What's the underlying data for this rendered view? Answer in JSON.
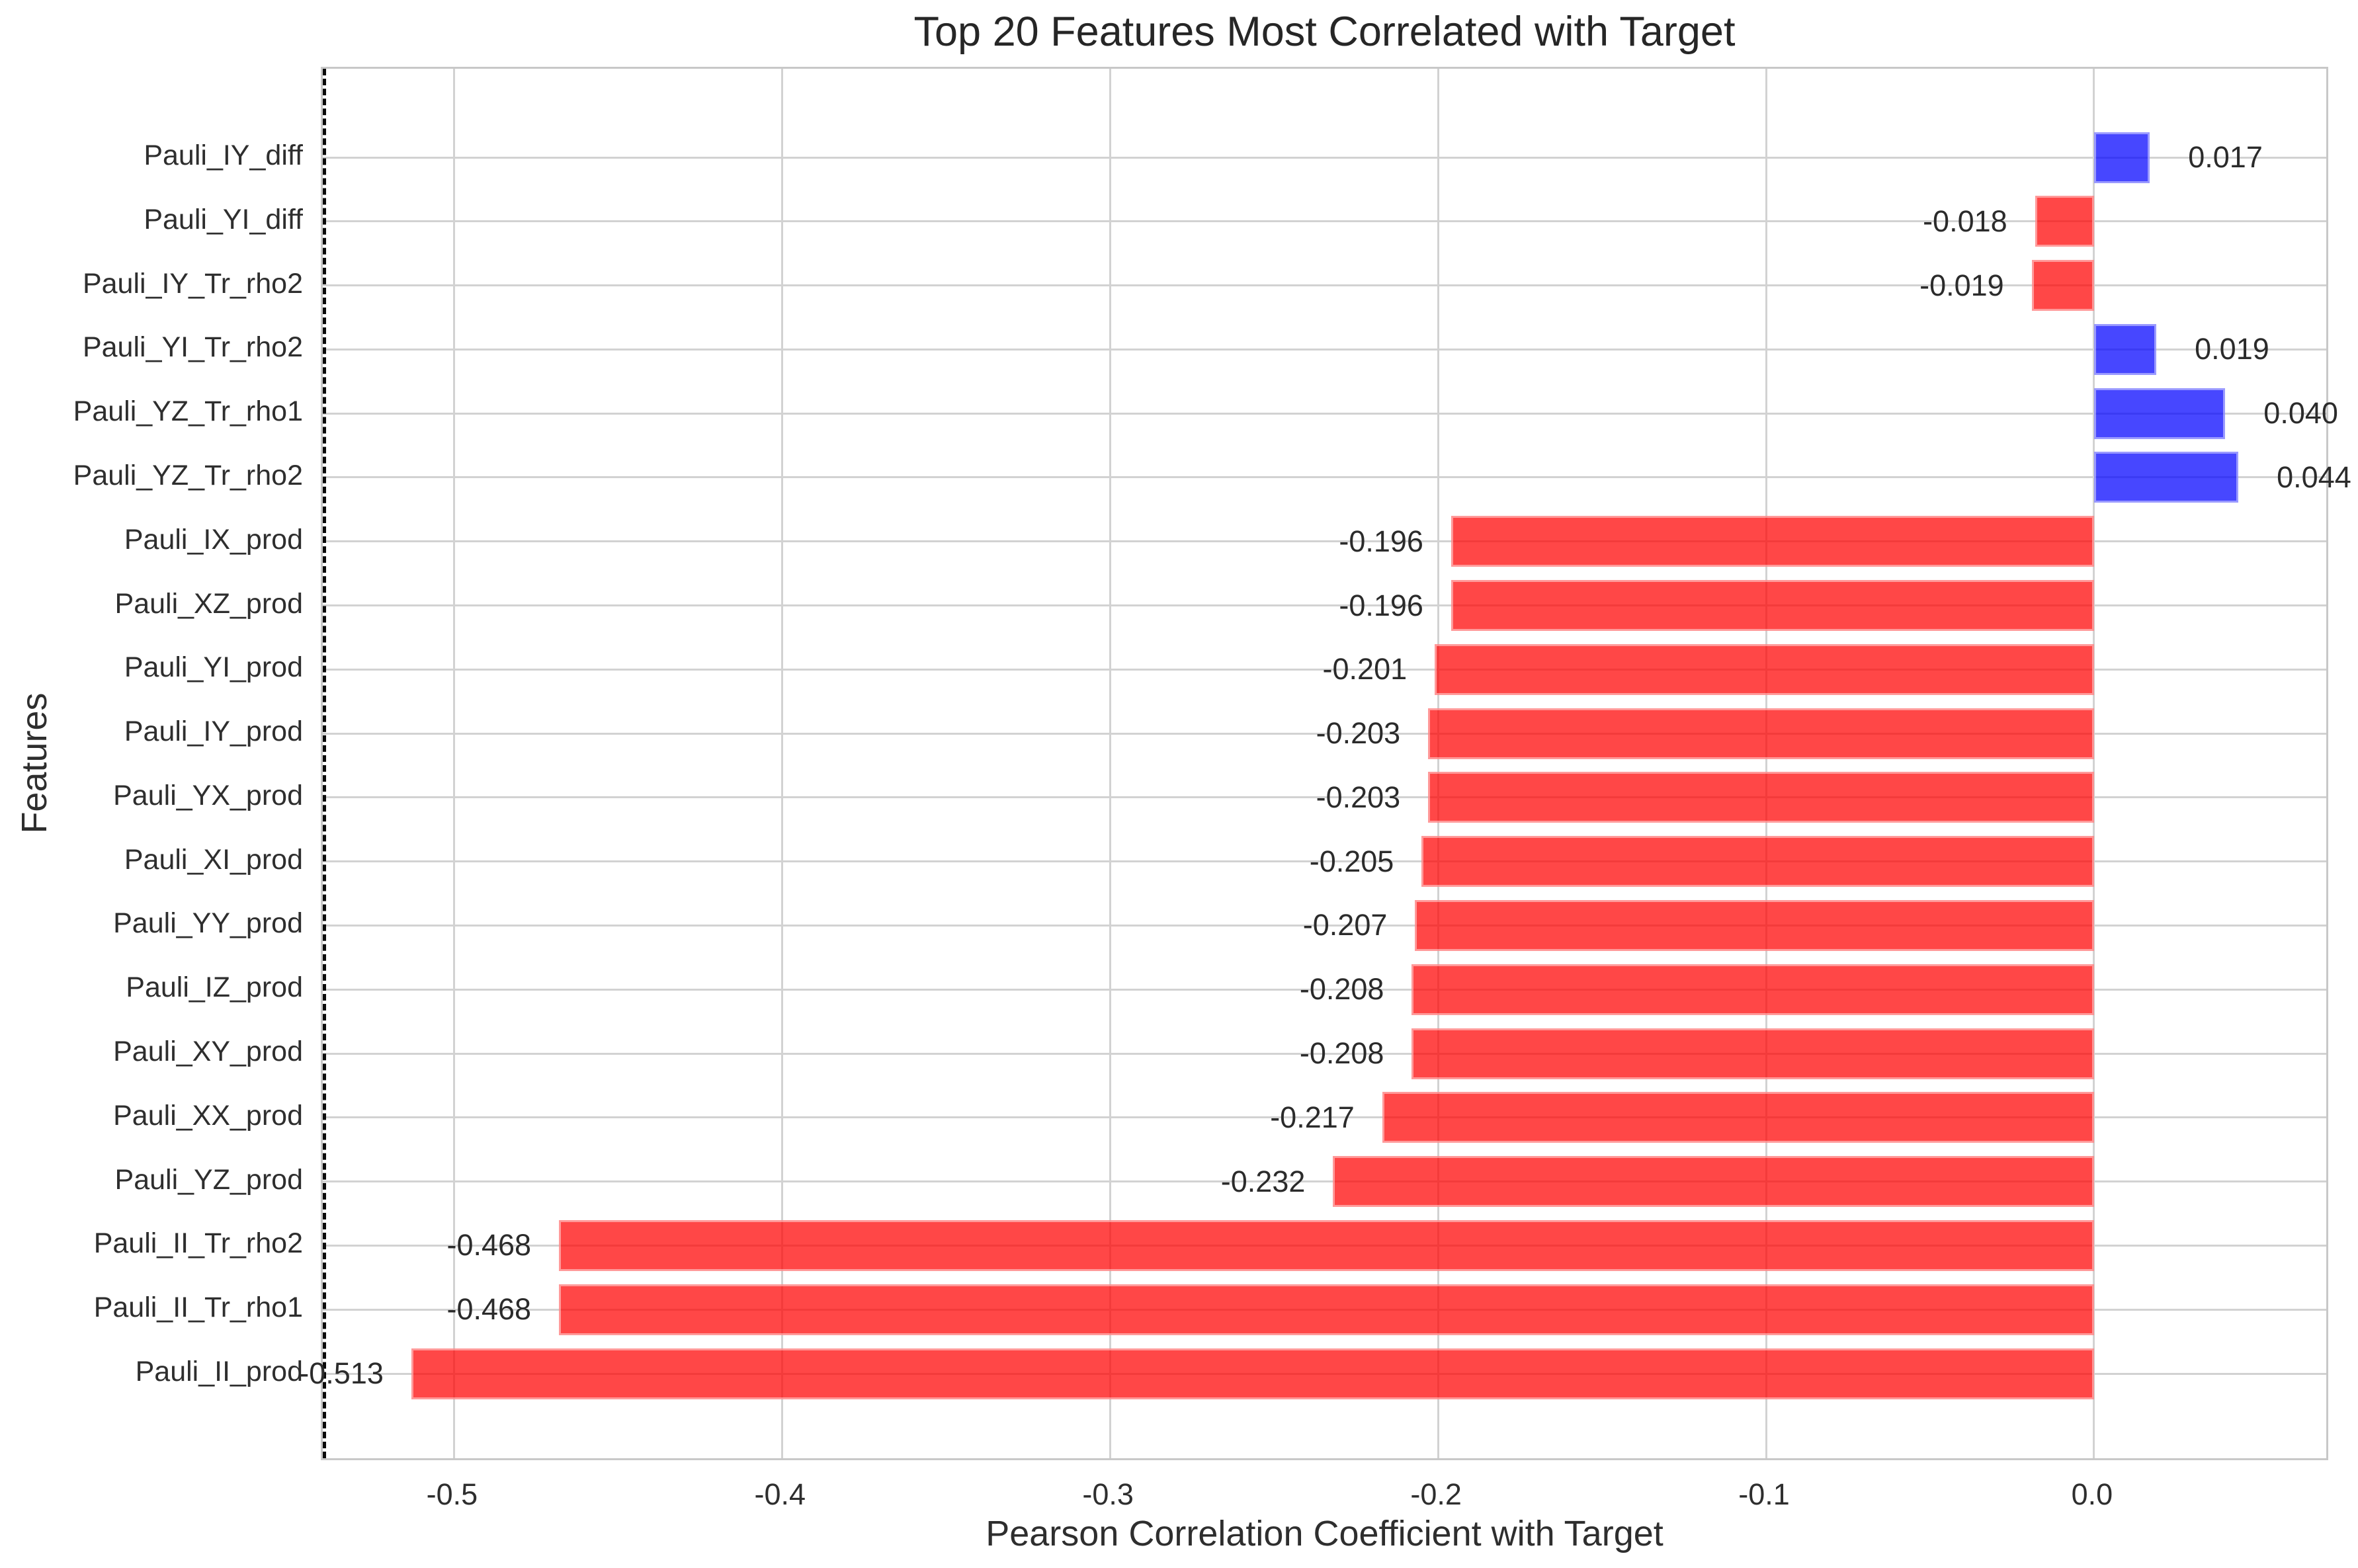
{
  "title": "Top 20 Features Most Correlated with Target",
  "axes": {
    "xlabel": "Pearson Correlation Coefficient with Target",
    "ylabel": "Features"
  },
  "chart_data": {
    "type": "bar",
    "orientation": "horizontal",
    "title": "Top 20 Features Most Correlated with Target",
    "xlabel": "Pearson Correlation Coefficient with Target",
    "ylabel": "Features",
    "categories": [
      "Pauli_IY_diff",
      "Pauli_YI_diff",
      "Pauli_IY_Tr_rho2",
      "Pauli_YI_Tr_rho2",
      "Pauli_YZ_Tr_rho1",
      "Pauli_YZ_Tr_rho2",
      "Pauli_IX_prod",
      "Pauli_XZ_prod",
      "Pauli_YI_prod",
      "Pauli_IY_prod",
      "Pauli_YX_prod",
      "Pauli_XI_prod",
      "Pauli_YY_prod",
      "Pauli_IZ_prod",
      "Pauli_XY_prod",
      "Pauli_XX_prod",
      "Pauli_YZ_prod",
      "Pauli_II_Tr_rho2",
      "Pauli_II_Tr_rho1",
      "Pauli_II_prod"
    ],
    "values": [
      0.017,
      -0.018,
      -0.019,
      0.019,
      0.04,
      0.044,
      -0.196,
      -0.196,
      -0.201,
      -0.203,
      -0.203,
      -0.205,
      -0.207,
      -0.208,
      -0.208,
      -0.217,
      -0.232,
      -0.468,
      -0.468,
      -0.513
    ],
    "value_labels": [
      "0.017",
      "-0.018",
      "-0.019",
      "0.019",
      "0.040",
      "0.044",
      "-0.196",
      "-0.196",
      "-0.201",
      "-0.203",
      "-0.203",
      "-0.205",
      "-0.207",
      "-0.208",
      "-0.208",
      "-0.217",
      "-0.232",
      "-0.468",
      "-0.468",
      "-0.513"
    ],
    "x_ticks": [
      -0.5,
      -0.4,
      -0.3,
      -0.2,
      -0.1,
      0.0
    ],
    "x_tick_labels": [
      "-0.5",
      "-0.4",
      "-0.3",
      "-0.2",
      "-0.1",
      "0.0"
    ],
    "xlim": [
      -0.54,
      0.072
    ],
    "grid": true,
    "legend": "none",
    "zero_line": {
      "x": 0,
      "style": "dashed",
      "color": "#0a0a0a"
    },
    "colors": {
      "positive_bar": "#0000ff",
      "negative_bar": "#ff0000",
      "bar_alpha": 0.72,
      "grid": "#d2d2d2",
      "spine": "#c8c8c8",
      "text": "#2e2e2e"
    }
  }
}
